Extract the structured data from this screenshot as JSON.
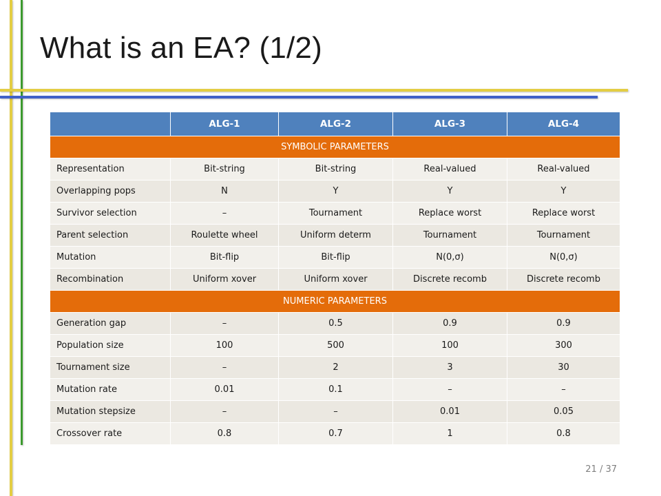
{
  "slide": {
    "title": "What is an EA? (1/2)",
    "page_number": "21 / 37"
  },
  "colors": {
    "header_blue": "#4f81bd",
    "section_orange": "#e46c0a",
    "accent_yellow": "#e3cd43",
    "accent_green": "#3c9a2e",
    "accent_blue": "#3f60c8"
  },
  "table": {
    "columns": [
      "",
      "ALG-1",
      "ALG-2",
      "ALG-3",
      "ALG-4"
    ],
    "sections": [
      {
        "label": "SYMBOLIC PARAMETERS",
        "rows": [
          [
            "Representation",
            "Bit-string",
            "Bit-string",
            "Real-valued",
            "Real-valued"
          ],
          [
            "Overlapping pops",
            "N",
            "Y",
            "Y",
            "Y"
          ],
          [
            "Survivor selection",
            "–",
            "Tournament",
            "Replace worst",
            "Replace worst"
          ],
          [
            "Parent selection",
            "Roulette wheel",
            "Uniform determ",
            "Tournament",
            "Tournament"
          ],
          [
            "Mutation",
            "Bit-flip",
            "Bit-flip",
            "N(0,σ)",
            "N(0,σ)"
          ],
          [
            "Recombination",
            "Uniform xover",
            "Uniform xover",
            "Discrete recomb",
            "Discrete recomb"
          ]
        ]
      },
      {
        "label": "NUMERIC PARAMETERS",
        "rows": [
          [
            "Generation gap",
            "–",
            "0.5",
            "0.9",
            "0.9"
          ],
          [
            "Population size",
            "100",
            "500",
            "100",
            "300"
          ],
          [
            "Tournament size",
            "–",
            "2",
            "3",
            "30"
          ],
          [
            "Mutation rate",
            "0.01",
            "0.1",
            "–",
            "–"
          ],
          [
            "Mutation stepsize",
            "–",
            "–",
            "0.01",
            "0.05"
          ],
          [
            "Crossover rate",
            "0.8",
            "0.7",
            "1",
            "0.8"
          ]
        ]
      }
    ]
  }
}
